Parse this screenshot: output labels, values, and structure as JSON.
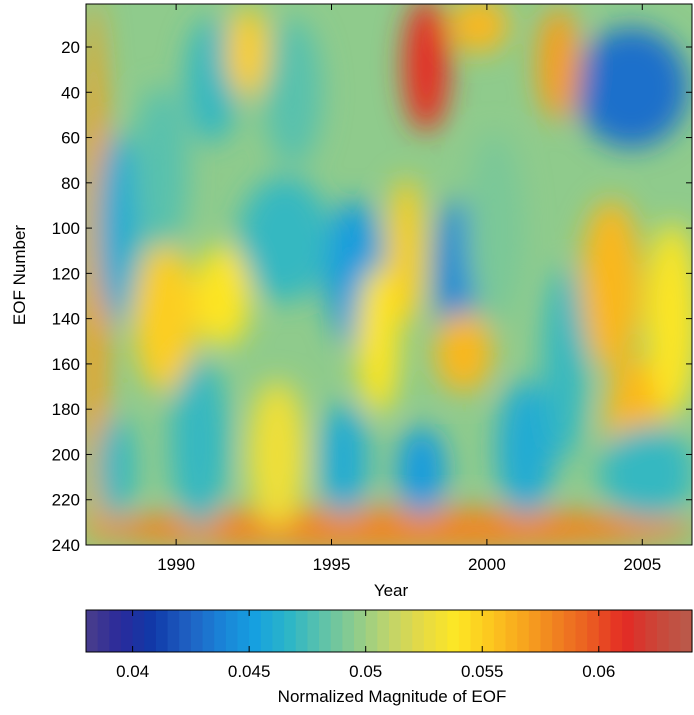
{
  "chart_data": [
    {
      "type": "heatmap",
      "title": "",
      "xlabel": "Year",
      "ylabel": "EOF Number",
      "xlim": [
        1987.1,
        2006.6
      ],
      "ylim": [
        240,
        1
      ],
      "x_ticks": [
        1990,
        1995,
        2000,
        2005
      ],
      "y_ticks": [
        20,
        40,
        60,
        80,
        100,
        120,
        140,
        160,
        180,
        200,
        220,
        240
      ],
      "y_reversed": true,
      "grid": false,
      "colormap": "jet-like (blue = low, yellow = mid, red = high)",
      "value_range": [
        0.038,
        0.064
      ],
      "features": [
        {
          "region": "bottom band, EOF 225-240, all years",
          "value": 0.058
        },
        {
          "region": "left edge, EOF 1-240, 1987",
          "value": 0.057
        },
        {
          "region": "top 1997.5-1998.6, EOF 1-50",
          "value": 0.061
        },
        {
          "region": "yellow streak 1997-1997.8, EOF 80-140",
          "value": 0.055
        },
        {
          "region": "dark blue 2003-2006, EOF 15-60",
          "value": 0.043
        },
        {
          "region": "blue 1995-1996.5, EOF 90-150",
          "value": 0.045
        },
        {
          "region": "blue 1998.5-1999.5, EOF 90-150",
          "value": 0.044
        },
        {
          "region": "blue 1997.3-1998.5, EOF 190-225",
          "value": 0.045
        },
        {
          "region": "orange 1998.5-2000, EOF 140-170",
          "value": 0.056
        }
      ]
    },
    {
      "type": "colorbar",
      "xlabel": "Normalized Magnitude of EOF",
      "xlim": [
        0.038,
        0.064
      ],
      "tick_labels": [
        "0.04",
        "0.045",
        "0.05",
        "0.055",
        "0.06"
      ],
      "tick_values": [
        0.04,
        0.045,
        0.05,
        0.055,
        0.06
      ],
      "colors": [
        "#4b3f8b",
        "#2b2a9b",
        "#0f3aa8",
        "#1f5fc2",
        "#1a82d6",
        "#16a0e0",
        "#2bb5c8",
        "#5cc2ab",
        "#8dcc8c",
        "#bfd46c",
        "#e6da44",
        "#fde724",
        "#fcc71f",
        "#f7a51e",
        "#f08020",
        "#ea5b22",
        "#e32a24",
        "#c9473a",
        "#b85b4c"
      ]
    }
  ]
}
